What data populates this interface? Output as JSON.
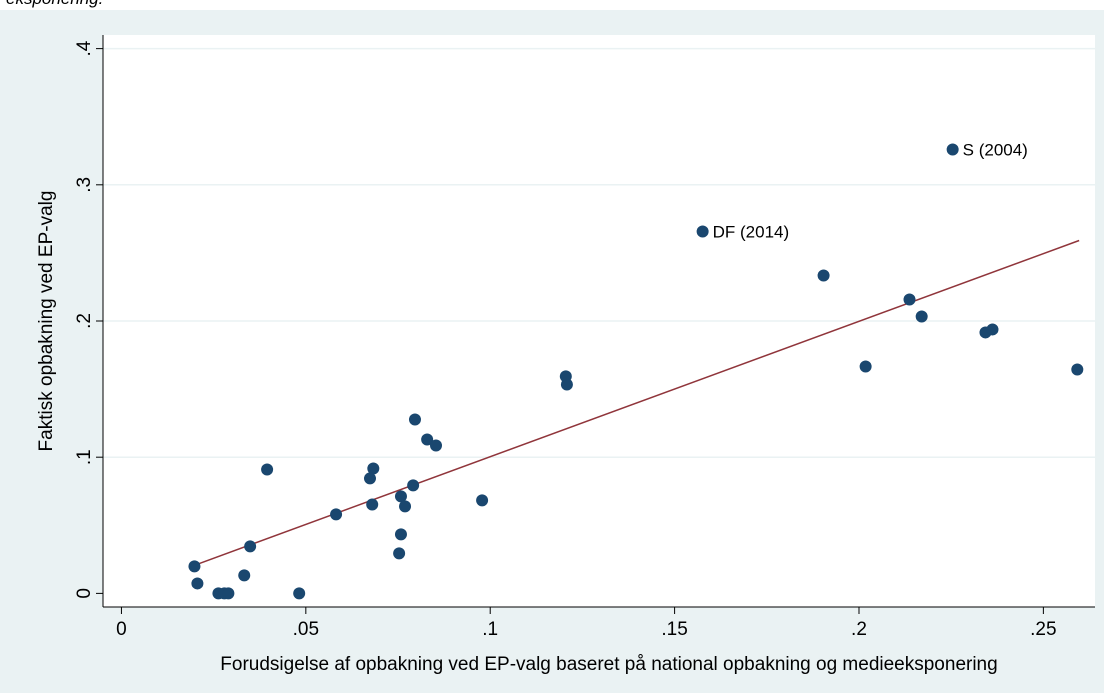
{
  "caption": "eksponering.",
  "chart_data": {
    "type": "scatter",
    "xlabel": "Forudsigelse af opbakning ved EP-valg baseret på national opbakning og medieeksponering",
    "ylabel": "Faktisk opbakning ved EP-valg",
    "xlim": [
      -0.005,
      0.264
    ],
    "ylim": [
      -0.01,
      0.41
    ],
    "xticks": [
      0,
      {
        "value": 0.05,
        "label": ".05"
      },
      {
        "value": 0.1,
        "label": ".1"
      },
      {
        "value": 0.15,
        "label": ".15"
      },
      {
        "value": 0.2,
        "label": ".2"
      },
      {
        "value": 0.25,
        "label": ".25"
      }
    ],
    "yticks": [
      0,
      {
        "value": 0.1,
        "label": ".1"
      },
      {
        "value": 0.2,
        "label": ".2"
      },
      {
        "value": 0.3,
        "label": ".3"
      },
      {
        "value": 0.4,
        "label": ".4"
      }
    ],
    "grid": true,
    "color": "#1a476f",
    "x": [
      0.0198,
      0.0206,
      0.0263,
      0.0279,
      0.029,
      0.0333,
      0.0349,
      0.0395,
      0.0482,
      0.0582,
      0.0674,
      0.0683,
      0.068,
      0.0753,
      0.0758,
      0.0758,
      0.0769,
      0.0791,
      0.0796,
      0.0829,
      0.0853,
      0.0978,
      0.1205,
      0.1208,
      0.1576,
      0.1904,
      0.2018,
      0.2137,
      0.217,
      0.2254,
      0.2343,
      0.2362,
      0.2592
    ],
    "y": [
      0.0198,
      0.0073,
      0,
      0,
      0,
      0.0132,
      0.0345,
      0.091,
      0,
      0.058,
      0.0844,
      0.0917,
      0.0653,
      0.0294,
      0.0712,
      0.0433,
      0.0639,
      0.0793,
      0.1277,
      0.113,
      0.1086,
      0.0683,
      0.1593,
      0.1534,
      0.2657,
      0.2334,
      0.1666,
      0.2158,
      0.2033,
      0.3259,
      0.1916,
      0.1938,
      0.1644
    ],
    "fit_line": {
      "color": "#90353b",
      "x": [
        0.0198,
        0.2597
      ],
      "y": [
        0.0206,
        0.2591
      ]
    },
    "annotations": [
      {
        "text": "DF (2014)",
        "x": 0.1576,
        "y": 0.2657
      },
      {
        "text": "S (2004)",
        "x": 0.2254,
        "y": 0.3259
      }
    ]
  }
}
